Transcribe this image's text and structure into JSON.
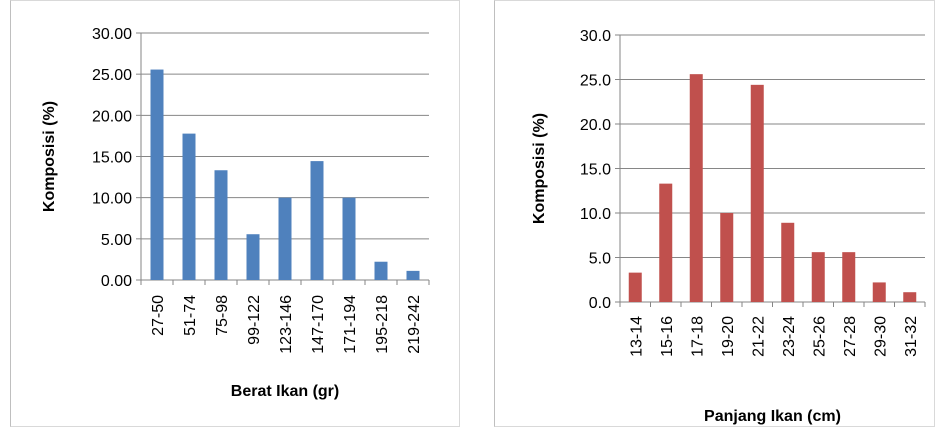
{
  "chart_data": [
    {
      "type": "bar",
      "categories": [
        "27-50",
        "51-74",
        "75-98",
        "99-122",
        "123-146",
        "147-170",
        "171-194",
        "195-218",
        "219-242"
      ],
      "series": [
        {
          "values": [
            25.56,
            17.78,
            13.33,
            5.56,
            10.0,
            14.44,
            10.0,
            2.22,
            1.11
          ]
        }
      ],
      "xlabel": "Berat Ikan (gr)",
      "ylabel": "Komposisi (%)",
      "ylim": [
        0,
        30
      ],
      "yticks": [
        "0.00",
        "5.00",
        "10.00",
        "15.00",
        "20.00",
        "25.00",
        "30.00"
      ],
      "color": "#4f81bd",
      "grid": true,
      "legend": "none"
    },
    {
      "type": "bar",
      "categories": [
        "13-14",
        "15-16",
        "17-18",
        "19-20",
        "21-22",
        "23-24",
        "25-26",
        "27-28",
        "29-30",
        "31-32"
      ],
      "series": [
        {
          "values": [
            3.3,
            13.3,
            25.6,
            10.0,
            24.4,
            8.9,
            5.6,
            5.6,
            2.2,
            1.1
          ]
        }
      ],
      "xlabel": "Panjang Ikan (cm)",
      "ylabel": "Komposisi (%)",
      "ylim": [
        0,
        30
      ],
      "yticks": [
        "0.0",
        "5.0",
        "10.0",
        "15.0",
        "20.0",
        "25.0",
        "30.0"
      ],
      "color": "#c0504d",
      "grid": true,
      "legend": "none"
    }
  ]
}
